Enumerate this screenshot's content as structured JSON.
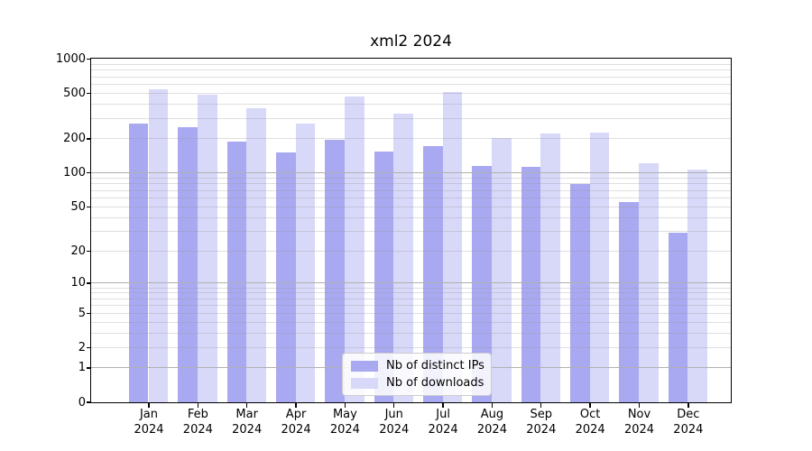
{
  "figure": {
    "background": "#ffffff"
  },
  "chart_data": {
    "type": "bar",
    "title": "xml2 2024",
    "categories": [
      "Jan",
      "Feb",
      "Mar",
      "Apr",
      "May",
      "Jun",
      "Jul",
      "Aug",
      "Sep",
      "Oct",
      "Nov",
      "Dec"
    ],
    "category_year": "2024",
    "series": [
      {
        "name": "Nb of distinct IPs",
        "color": "#a9a9f1",
        "values": [
          270,
          252,
          187,
          149,
          195,
          152,
          170,
          114,
          112,
          79,
          55,
          29
        ]
      },
      {
        "name": "Nb of downloads",
        "color": "#d8d8f9",
        "values": [
          540,
          480,
          365,
          270,
          465,
          330,
          505,
          200,
          222,
          223,
          120,
          107
        ]
      }
    ],
    "xlabel": "",
    "ylabel": "",
    "yscale": "log1p",
    "ylim": [
      0,
      1000
    ],
    "yticks": [
      0,
      1,
      2,
      5,
      10,
      20,
      50,
      100,
      200,
      500,
      1000
    ],
    "major_gridlines": [
      1,
      10,
      100
    ],
    "minor_gridline_decades": [
      1,
      10,
      100
    ],
    "grid": "both",
    "legend": {
      "position": "lower-center",
      "labels": [
        "Nb of distinct IPs",
        "Nb of downloads"
      ]
    },
    "colors": {
      "major_grid": "#b0b0b0",
      "minor_grid": "rgba(150,150,150,0.30)",
      "spine": "#000000",
      "background": "#ffffff"
    }
  }
}
